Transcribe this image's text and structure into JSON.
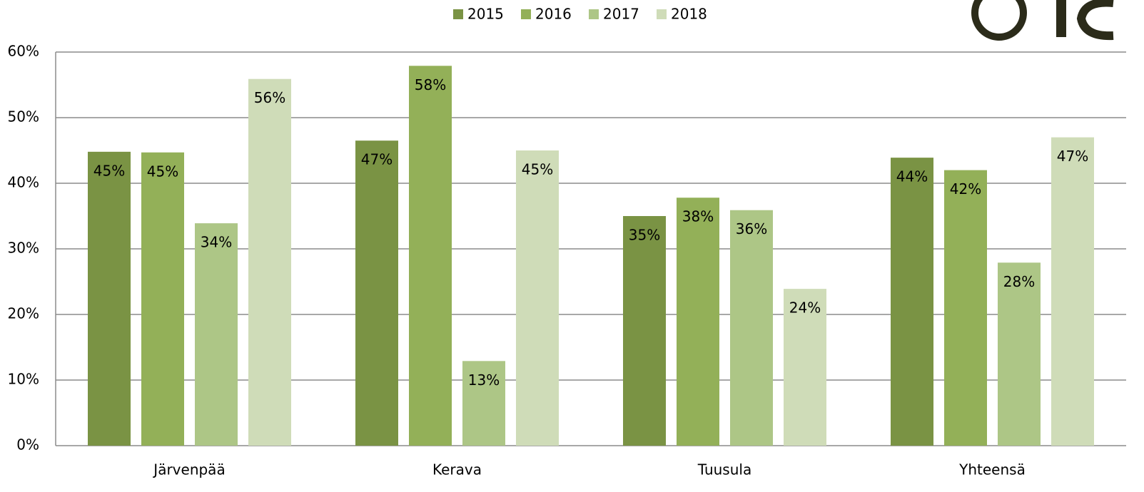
{
  "chart_data": {
    "type": "bar",
    "categories": [
      "Järvenpää",
      "Kerava",
      "Tuusula",
      "Yhteensä"
    ],
    "series": [
      {
        "name": "2015",
        "color": "#7a9344",
        "values": [
          44.8,
          46.5,
          35,
          43.9
        ],
        "value_labels": [
          "45%",
          "47%",
          "35%",
          "44%"
        ]
      },
      {
        "name": "2016",
        "color": "#93b058",
        "values": [
          44.7,
          57.9,
          37.8,
          42
        ],
        "value_labels": [
          "45%",
          "58%",
          "38%",
          "42%"
        ]
      },
      {
        "name": "2017",
        "color": "#adc686",
        "values": [
          33.9,
          12.9,
          35.9,
          27.9
        ],
        "value_labels": [
          "34%",
          "13%",
          "36%",
          "28%"
        ]
      },
      {
        "name": "2018",
        "color": "#cfdcb8",
        "values": [
          55.9,
          45,
          23.9,
          47
        ],
        "value_labels": [
          "56%",
          "45%",
          "24%",
          "47%"
        ]
      }
    ],
    "ylim": [
      0,
      60
    ],
    "yticks": [
      {
        "value": 0,
        "label": "0%"
      },
      {
        "value": 10,
        "label": "10%"
      },
      {
        "value": 20,
        "label": "20%"
      },
      {
        "value": 30,
        "label": "30%"
      },
      {
        "value": 40,
        "label": "40%"
      },
      {
        "value": 50,
        "label": "50%"
      },
      {
        "value": 60,
        "label": "60%"
      }
    ],
    "grid": true,
    "legend": "top"
  }
}
